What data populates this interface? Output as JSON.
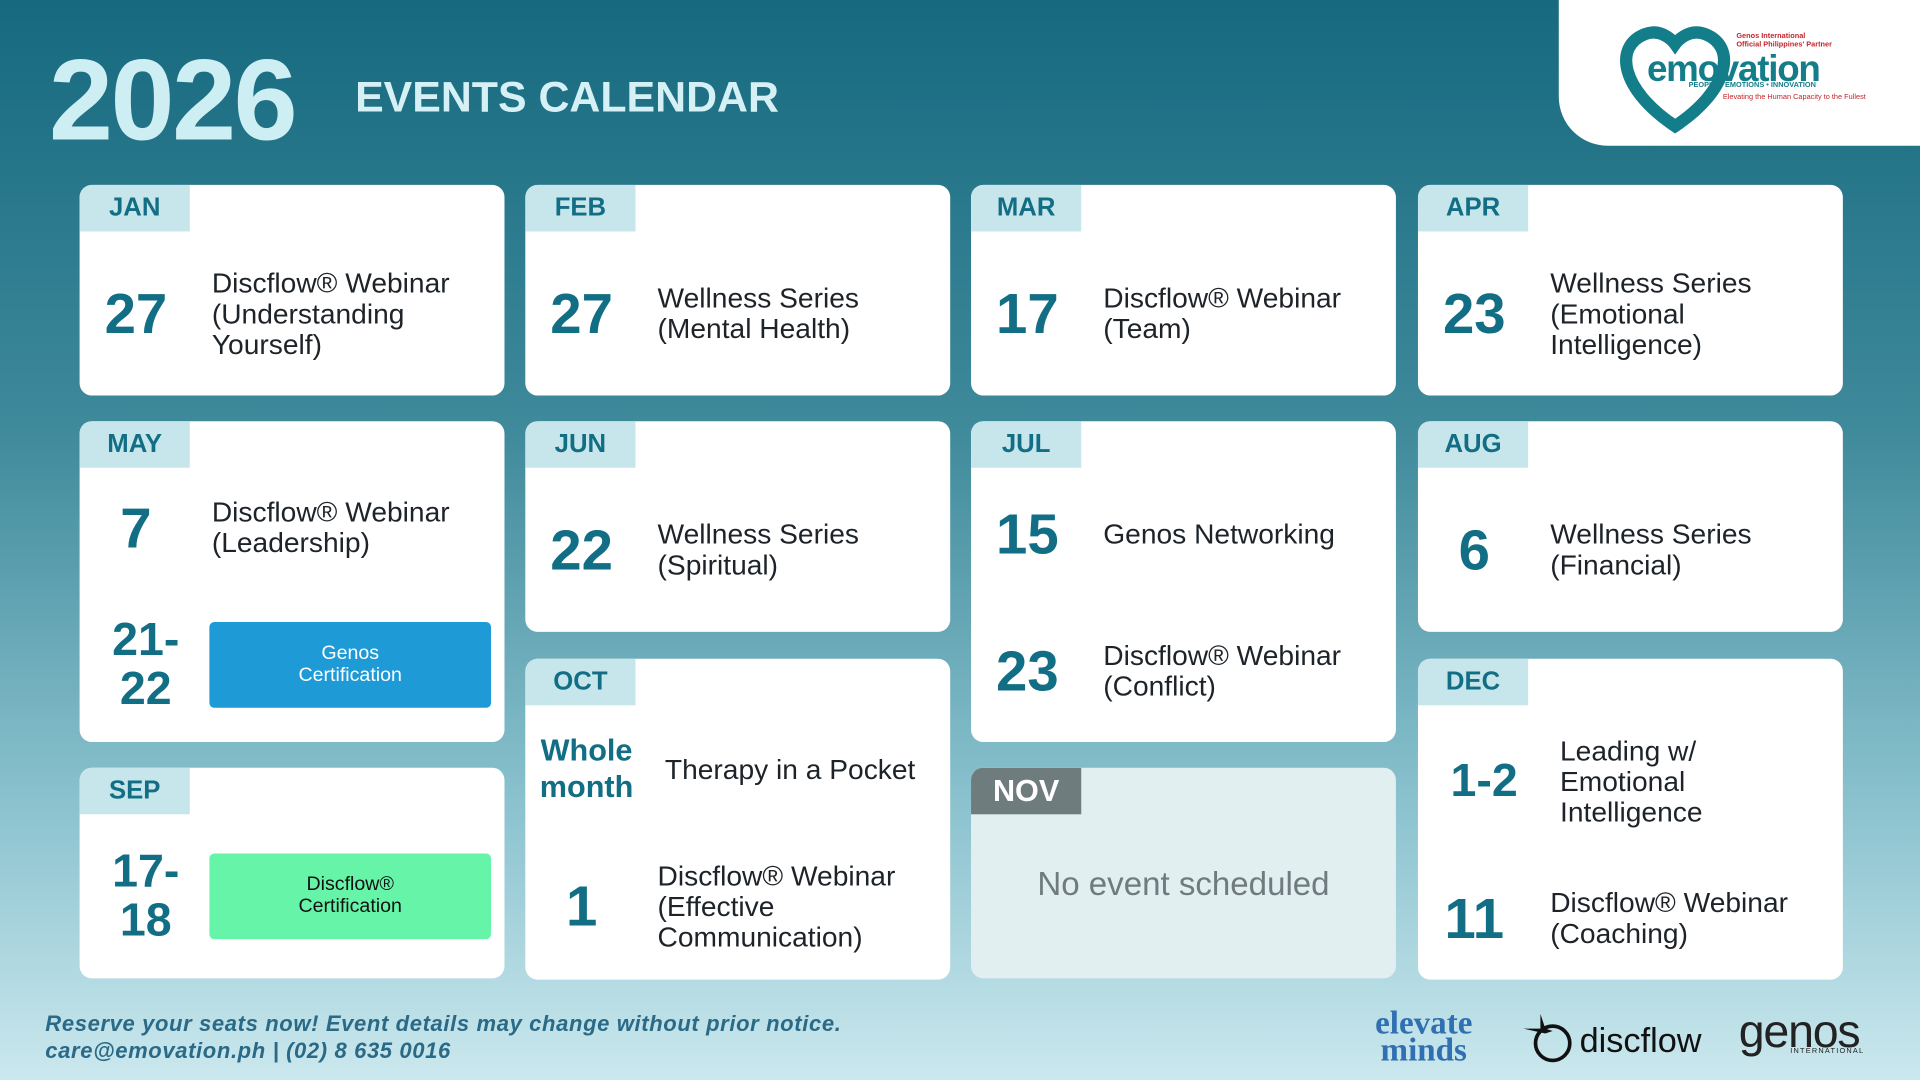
{
  "header": {
    "year": "2026",
    "title": "EVENTS CALENDAR"
  },
  "logo": {
    "partner_line1": "Genos International",
    "partner_line2": "Official Philippines' Partner",
    "brand": "emovation",
    "tagline": "PEOPLE • EMOTIONS • INNOVATION",
    "slogan": "Elevating the Human Capacity to the Fullest"
  },
  "months": [
    {
      "name": "JAN",
      "events": [
        {
          "date": "27",
          "lines": [
            "Discflow® Webinar",
            "(Understanding",
            "Yourself)"
          ]
        }
      ]
    },
    {
      "name": "FEB",
      "events": [
        {
          "date": "27",
          "lines": [
            "Wellness Series",
            "(Mental Health)"
          ]
        }
      ]
    },
    {
      "name": "MAR",
      "events": [
        {
          "date": "17",
          "lines": [
            "Discflow® Webinar",
            "(Team)"
          ]
        }
      ]
    },
    {
      "name": "APR",
      "events": [
        {
          "date": "23",
          "lines": [
            "Wellness Series",
            "(Emotional",
            "Intelligence)"
          ]
        }
      ]
    },
    {
      "name": "MAY",
      "events": [
        {
          "date": "7",
          "lines": [
            "Discflow® Webinar",
            "(Leadership)"
          ]
        },
        {
          "date": "21-22",
          "lines": [
            "Genos",
            "Certification"
          ],
          "badge_color": "#1e9ad6"
        }
      ]
    },
    {
      "name": "JUN",
      "events": [
        {
          "date": "22",
          "lines": [
            "Wellness Series",
            "(Spiritual)"
          ]
        }
      ]
    },
    {
      "name": "JUL",
      "events": [
        {
          "date": "15",
          "lines": [
            "Genos Networking"
          ]
        },
        {
          "date": "23",
          "lines": [
            "Discflow® Webinar",
            "(Conflict)"
          ]
        }
      ]
    },
    {
      "name": "AUG",
      "events": [
        {
          "date": "6",
          "lines": [
            "Wellness Series",
            "(Financial)"
          ]
        }
      ]
    },
    {
      "name": "SEP",
      "events": [
        {
          "date": "17-18",
          "lines": [
            "Discflow®",
            "Certification"
          ],
          "badge_color": "#66f5a8"
        }
      ]
    },
    {
      "name": "OCT",
      "events": [
        {
          "date": "Whole month",
          "lines": [
            "Therapy in a Pocket"
          ]
        },
        {
          "date": "1",
          "lines": [
            "Discflow® Webinar",
            "(Effective",
            "Communication)"
          ]
        }
      ]
    },
    {
      "name": "NOV",
      "events": [],
      "note": "No event scheduled"
    },
    {
      "name": "DEC",
      "events": [
        {
          "date": "1-2",
          "lines": [
            "Leading w/",
            "Emotional",
            "Intelligence"
          ]
        },
        {
          "date": "11",
          "lines": [
            "Discflow® Webinar",
            "(Coaching)"
          ]
        }
      ]
    }
  ],
  "footer": {
    "line1": "Reserve your seats now! Event details may change without prior notice.",
    "line2": "care@emovation.ph | (02) 8 635 0016"
  },
  "partners": {
    "elevate1": "elevate",
    "elevate2": "minds",
    "discflow": "discflow",
    "genos": "genos",
    "genos_sub": "INTERNATIONAL"
  }
}
